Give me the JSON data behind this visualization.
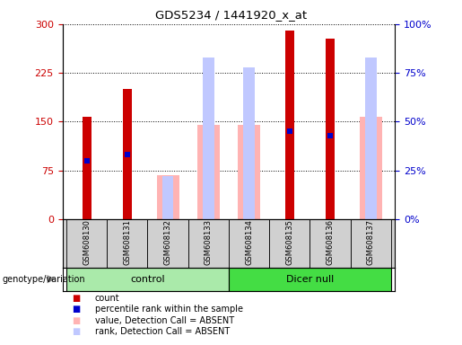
{
  "title": "GDS5234 / 1441920_x_at",
  "samples": [
    "GSM608130",
    "GSM608131",
    "GSM608132",
    "GSM608133",
    "GSM608134",
    "GSM608135",
    "GSM608136",
    "GSM608137"
  ],
  "count": [
    158,
    200,
    0,
    0,
    0,
    290,
    278,
    0
  ],
  "percentile_rank_pct": [
    30,
    33,
    0,
    0,
    0,
    45,
    43,
    0
  ],
  "absent_value": [
    0,
    0,
    68,
    145,
    145,
    0,
    0,
    158
  ],
  "absent_rank_pct": [
    0,
    0,
    22,
    83,
    78,
    0,
    0,
    83
  ],
  "left_ylim": [
    0,
    300
  ],
  "left_yticks": [
    0,
    75,
    150,
    225,
    300
  ],
  "right_yticks": [
    0,
    25,
    50,
    75,
    100
  ],
  "right_yticklabels": [
    "0%",
    "25%",
    "50%",
    "75%",
    "100%"
  ],
  "bar_color_count": "#cc0000",
  "bar_color_percentile": "#0000cc",
  "bar_color_absent_value": "#ffb3b3",
  "bar_color_absent_rank": "#c0c8ff",
  "left_label_color": "#cc0000",
  "right_label_color": "#0000cc",
  "control_color": "#aaeaaa",
  "dicer_color": "#44dd44",
  "sample_bg": "#d0d0d0"
}
